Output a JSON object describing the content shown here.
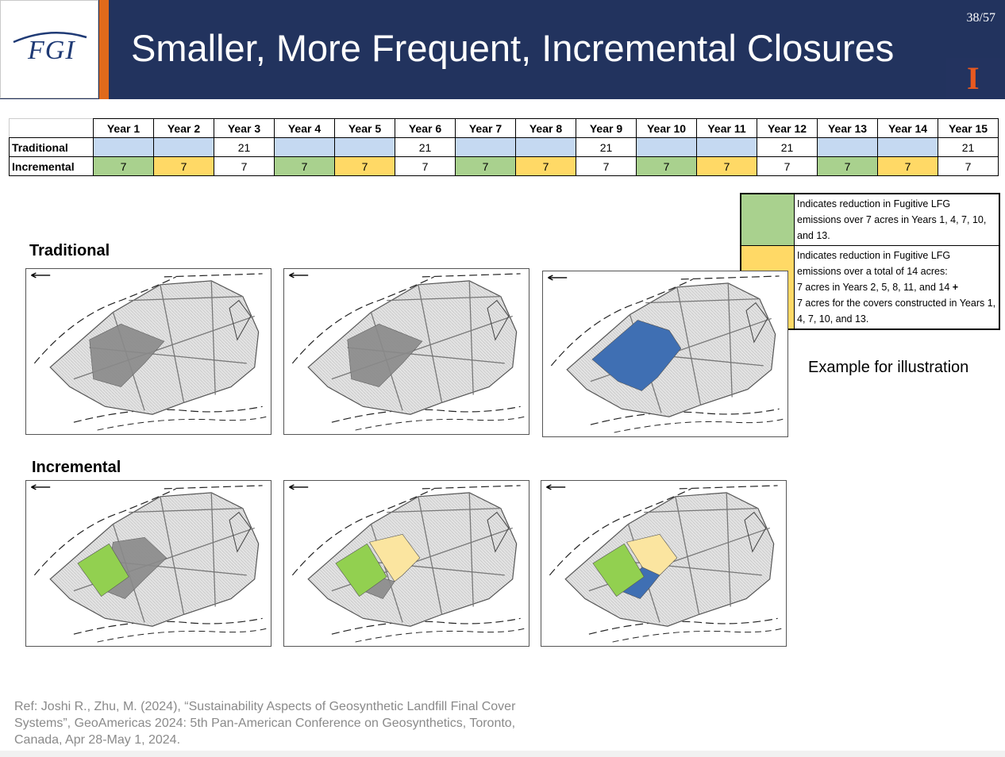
{
  "header": {
    "logo_text": "FGI",
    "title": "Smaller, More Frequent, Incremental Closures",
    "page_number": "38/57",
    "university_logo": "I"
  },
  "table": {
    "years": [
      "Year 1",
      "Year 2",
      "Year 3",
      "Year 4",
      "Year 5",
      "Year 6",
      "Year 7",
      "Year 8",
      "Year 9",
      "Year 10",
      "Year 11",
      "Year 12",
      "Year 13",
      "Year 14",
      "Year 15"
    ],
    "rows": [
      {
        "label": "Traditional",
        "cells": [
          {
            "v": "",
            "c": "blue"
          },
          {
            "v": "",
            "c": "blue"
          },
          {
            "v": "21",
            "c": ""
          },
          {
            "v": "",
            "c": "blue"
          },
          {
            "v": "",
            "c": "blue"
          },
          {
            "v": "21",
            "c": ""
          },
          {
            "v": "",
            "c": "blue"
          },
          {
            "v": "",
            "c": "blue"
          },
          {
            "v": "21",
            "c": ""
          },
          {
            "v": "",
            "c": "blue"
          },
          {
            "v": "",
            "c": "blue"
          },
          {
            "v": "21",
            "c": ""
          },
          {
            "v": "",
            "c": "blue"
          },
          {
            "v": "",
            "c": "blue"
          },
          {
            "v": "21",
            "c": ""
          }
        ]
      },
      {
        "label": "Incremental",
        "cells": [
          {
            "v": "7",
            "c": "green"
          },
          {
            "v": "7",
            "c": "yellow"
          },
          {
            "v": "7",
            "c": ""
          },
          {
            "v": "7",
            "c": "green"
          },
          {
            "v": "7",
            "c": "yellow"
          },
          {
            "v": "7",
            "c": ""
          },
          {
            "v": "7",
            "c": "green"
          },
          {
            "v": "7",
            "c": "yellow"
          },
          {
            "v": "7",
            "c": ""
          },
          {
            "v": "7",
            "c": "green"
          },
          {
            "v": "7",
            "c": "yellow"
          },
          {
            "v": "7",
            "c": ""
          },
          {
            "v": "7",
            "c": "green"
          },
          {
            "v": "7",
            "c": "yellow"
          },
          {
            "v": "7",
            "c": ""
          }
        ]
      }
    ]
  },
  "legend": {
    "green_text": "Indicates reduction in Fugitive LFG emissions over 7 acres in Years 1, 4, 7, 10, and 13.",
    "yellow_line1": "Indicates reduction in Fugitive LFG emissions over a total of 14 acres:",
    "yellow_line2": "7 acres in Years 2, 5, 8, 11, and 14",
    "yellow_plus": "+",
    "yellow_line3": "7 acres for the covers constructed in Years 1, 4, 7, 10, and 13."
  },
  "labels": {
    "traditional": "Traditional",
    "incremental": "Incremental",
    "example": "Example for illustration"
  },
  "colors": {
    "header_bg": "#22335e",
    "accent_orange": "#e06a1b",
    "blue_cell": "#c5d9f1",
    "green": "#a9d18e",
    "yellow": "#ffd966",
    "map_blue": "#3f6fb3",
    "map_green": "#92d050",
    "map_yellow": "#fbe5a0"
  },
  "reference": "Ref: Joshi R., Zhu, M. (2024), “Sustainability Aspects of Geosynthetic Landfill Final Cover Systems”, GeoAmericas 2024: 5th Pan-American Conference on Geosynthetics, Toronto, Canada, Apr 28-May 1, 2024."
}
